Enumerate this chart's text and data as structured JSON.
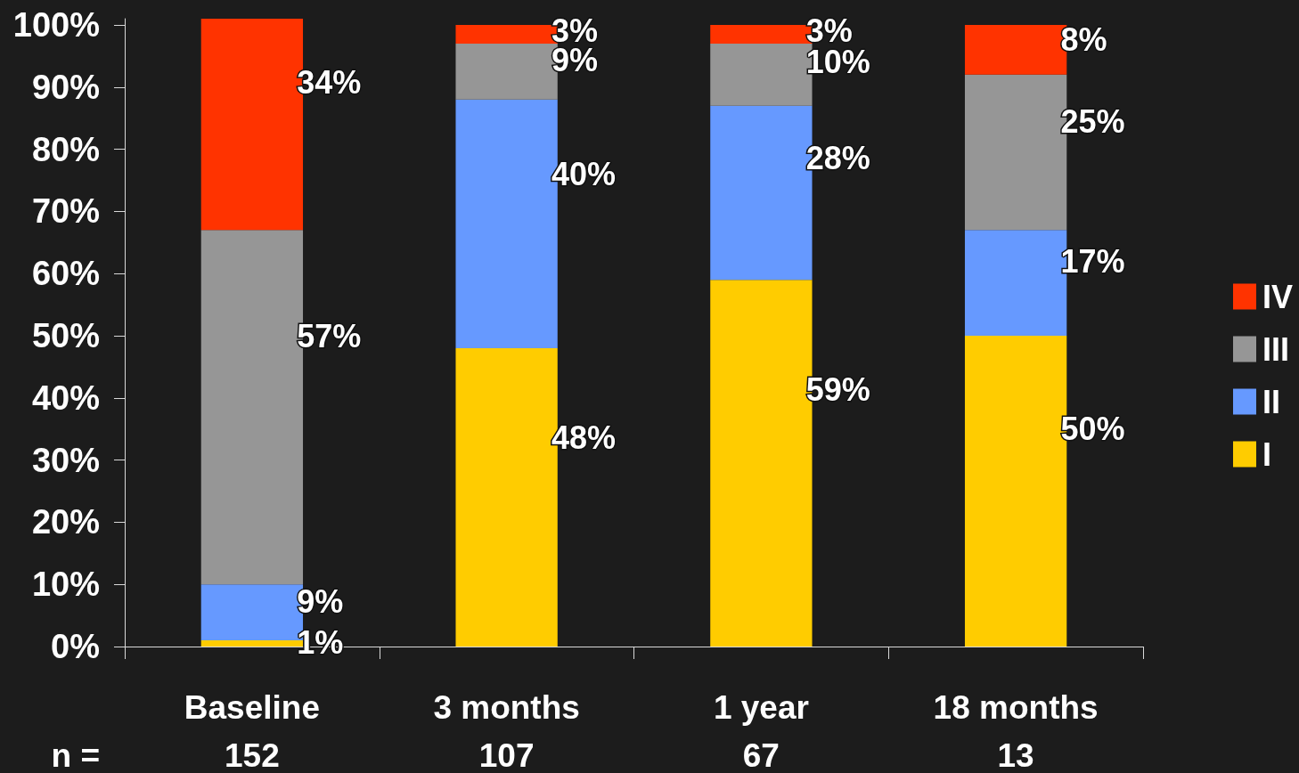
{
  "chart_data": {
    "type": "bar",
    "stacked": true,
    "categories": [
      "Baseline",
      "3 months",
      "1 year",
      "18 months"
    ],
    "series": [
      {
        "name": "I",
        "color": "#ffcc00",
        "values": [
          1,
          48,
          59,
          50
        ],
        "value_labels": [
          "1%",
          "48%",
          "59%",
          "50%"
        ]
      },
      {
        "name": "II",
        "color": "#6699ff",
        "values": [
          9,
          40,
          28,
          17
        ],
        "value_labels": [
          "9%",
          "40%",
          "28%",
          "17%"
        ]
      },
      {
        "name": "III",
        "color": "#969696",
        "values": [
          57,
          9,
          10,
          25
        ],
        "value_labels": [
          "57%",
          "9%",
          "10%",
          "25%"
        ]
      },
      {
        "name": "IV",
        "color": "#ff3300",
        "values": [
          34,
          3,
          3,
          8
        ],
        "value_labels": [
          "34%",
          "3%",
          "3%",
          "8%"
        ]
      }
    ],
    "ylim": [
      0,
      101
    ],
    "yticks": [
      {
        "value": 0,
        "label": "0%"
      },
      {
        "value": 10,
        "label": "10%"
      },
      {
        "value": 20,
        "label": "20%"
      },
      {
        "value": 30,
        "label": "30%"
      },
      {
        "value": 40,
        "label": "40%"
      },
      {
        "value": 50,
        "label": "50%"
      },
      {
        "value": 60,
        "label": "60%"
      },
      {
        "value": 70,
        "label": "70%"
      },
      {
        "value": 80,
        "label": "80%"
      },
      {
        "value": 90,
        "label": "90%"
      },
      {
        "value": 100,
        "label": "100%"
      }
    ],
    "legend": "right",
    "annotations": [
      "n =",
      "152",
      "107",
      "67",
      "13"
    ]
  }
}
